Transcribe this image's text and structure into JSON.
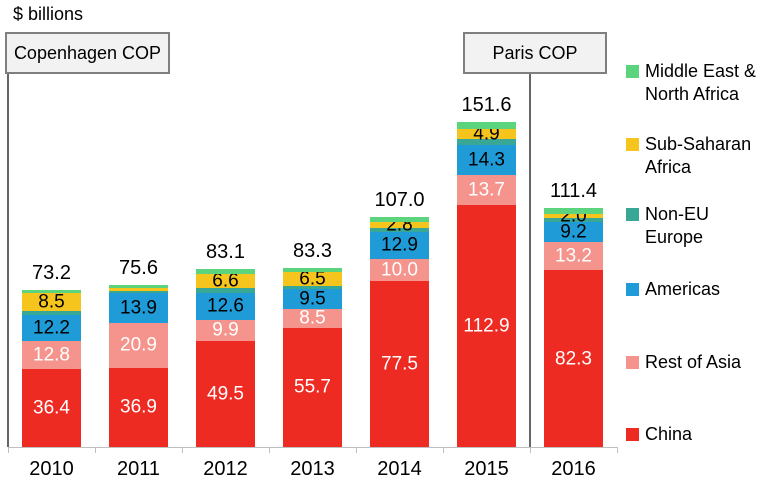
{
  "title": "$ billions",
  "annotations": {
    "copenhagen": "Copenhagen COP",
    "paris": "Paris COP"
  },
  "legend": {
    "items": [
      {
        "label": "Middle East &\nNorth Africa",
        "color": "#5bd47d"
      },
      {
        "label": "Sub-Saharan\nAfrica",
        "color": "#f6c51d"
      },
      {
        "label": "Non-EU\nEurope",
        "color": "#38a795"
      },
      {
        "label": "Americas",
        "color": "#1f9cd8"
      },
      {
        "label": "Rest of Asia",
        "color": "#f5948c"
      },
      {
        "label": "China",
        "color": "#ee2b23"
      }
    ]
  },
  "chart_data": {
    "type": "bar",
    "stacked": true,
    "unit": "$ billions",
    "title": "$ billions",
    "categories": [
      "2010",
      "2011",
      "2012",
      "2013",
      "2014",
      "2015",
      "2016"
    ],
    "totals": [
      73.2,
      75.6,
      83.1,
      83.3,
      107.0,
      151.6,
      111.4
    ],
    "totals_labels": [
      "73.2",
      "75.6",
      "83.1",
      "83.3",
      "107.0",
      "151.6",
      "111.4"
    ],
    "series": [
      {
        "name": "China",
        "color": "#ee2b23",
        "label_color": "#ffffff",
        "values": [
          36.4,
          36.9,
          49.5,
          55.7,
          77.5,
          112.9,
          82.3
        ],
        "labels": [
          "36.4",
          "36.9",
          "49.5",
          "55.7",
          "77.5",
          "112.9",
          "82.3"
        ]
      },
      {
        "name": "Rest of Asia",
        "color": "#f5948c",
        "label_color": "#ffffff",
        "values": [
          12.8,
          20.9,
          9.9,
          8.5,
          10.0,
          13.7,
          13.2
        ],
        "labels": [
          "12.8",
          "20.9",
          "9.9",
          "8.5",
          "10.0",
          "13.7",
          "13.2"
        ]
      },
      {
        "name": "Americas",
        "color": "#1f9cd8",
        "label_color": "#000000",
        "values": [
          12.2,
          13.9,
          12.6,
          9.5,
          12.9,
          14.3,
          9.2
        ],
        "labels": [
          "12.2",
          "13.9",
          "12.6",
          "9.5",
          "12.9",
          "14.3",
          "9.2"
        ]
      },
      {
        "name": "Non-EU Europe",
        "color": "#38a795",
        "label_color": "#000000",
        "values": [
          1.9,
          1.1,
          2.2,
          1.4,
          1.6,
          2.6,
          2.1
        ],
        "labels": [
          "",
          "",
          "",
          "",
          "",
          "",
          ""
        ]
      },
      {
        "name": "Sub-Saharan Africa",
        "color": "#f6c51d",
        "label_color": "#000000",
        "values": [
          8.5,
          1.5,
          6.6,
          6.5,
          2.8,
          4.9,
          2.0
        ],
        "labels": [
          "8.5",
          "",
          "6.6",
          "6.5",
          "2.8",
          "4.9",
          "2.0"
        ]
      },
      {
        "name": "Middle East & North Africa",
        "color": "#5bd47d",
        "label_color": "#000000",
        "values": [
          1.4,
          1.3,
          2.3,
          1.7,
          2.2,
          3.2,
          2.6
        ],
        "labels": [
          "",
          "",
          "",
          "",
          "",
          "",
          ""
        ]
      }
    ],
    "annotations": [
      {
        "text": "Copenhagen COP",
        "x_position": "2010"
      },
      {
        "text": "Paris COP",
        "x_position": "between 2015 and 2016"
      }
    ],
    "legend_position": "right",
    "gridlines": false,
    "ylim": [
      0,
      160
    ]
  }
}
